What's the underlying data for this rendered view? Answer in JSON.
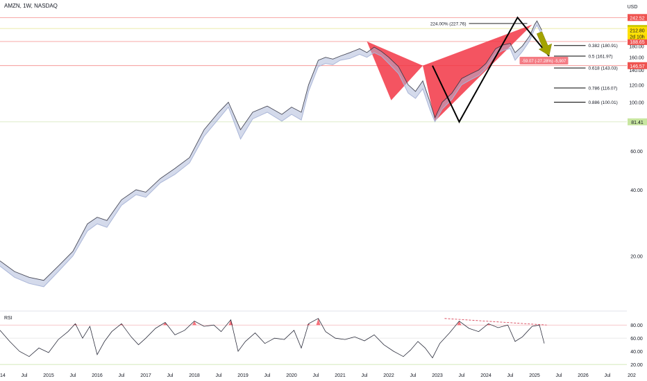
{
  "header": {
    "symbol_title": "AMZN, 1W, NASDAQ",
    "currency": "USD"
  },
  "colors": {
    "price_line": "#2b2d3c",
    "price_band": "#aab6d8",
    "red_pattern": "#f23645",
    "arrow": "#a3a300",
    "rsi_line": "#2b2d3c",
    "rsi_overbought_fill": "#f23645",
    "rsi_oversold_fill": "#26a69a",
    "level_red": "#ef5350",
    "level_yellow_badge": "#c8c800",
    "level_green": "#c5e1a5"
  },
  "chart_data": [
    {
      "type": "line",
      "panel": "price",
      "ylim": [
        12,
        252
      ],
      "y_scale": "log",
      "y_ticks": [
        20.0,
        40.0,
        60.0,
        100.0,
        120.0,
        140.0,
        160.0,
        180.0,
        200.0
      ],
      "x_tick_labels": [
        "2014",
        "Jul",
        "2015",
        "Jul",
        "2016",
        "Jul",
        "2017",
        "Jul",
        "2018",
        "Jul",
        "2019",
        "Jul",
        "2020",
        "Jul",
        "2021",
        "Jul",
        "2022",
        "Jul",
        "2023",
        "Jul",
        "2024",
        "Jul",
        "2025",
        "Jul",
        "2026",
        "Jul",
        "202"
      ],
      "x_range": [
        2014.0,
        2026.9
      ],
      "series": [
        {
          "x": [
            2014.0,
            2014.3,
            2014.6,
            2014.9,
            2015.2,
            2015.5,
            2015.8,
            2016.0,
            2016.2,
            2016.5,
            2016.8,
            2017.0,
            2017.3,
            2017.6,
            2017.9,
            2018.2,
            2018.5,
            2018.7,
            2018.95,
            2019.2,
            2019.5,
            2019.8,
            2020.0,
            2020.2,
            2020.35,
            2020.55,
            2020.7,
            2020.85,
            2021.0,
            2021.2,
            2021.4,
            2021.55,
            2021.7,
            2021.85,
            2022.0,
            2022.2,
            2022.4,
            2022.55,
            2022.7,
            2022.85,
            2022.95,
            2023.1,
            2023.3,
            2023.5,
            2023.7,
            2023.85,
            2024.0,
            2024.2,
            2024.35,
            2024.5,
            2024.6,
            2024.75,
            2024.9,
            2025.0,
            2025.05,
            2025.15
          ],
          "values": [
            19,
            17,
            16,
            15.5,
            18,
            21,
            28,
            30,
            29,
            36,
            40,
            39,
            45,
            50,
            56,
            75,
            90,
            100,
            75,
            90,
            96,
            88,
            95,
            90,
            120,
            155,
            160,
            157,
            162,
            168,
            175,
            168,
            178,
            170,
            160,
            145,
            120,
            112,
            125,
            100,
            85,
            100,
            110,
            128,
            135,
            140,
            150,
            175,
            182,
            185,
            168,
            180,
            200,
            225,
            234,
            212
          ],
          "lows": [
            18,
            16,
            15,
            14.5,
            17,
            20,
            26,
            28,
            27,
            34,
            38,
            37,
            43,
            47,
            53,
            70,
            84,
            95,
            68,
            84,
            90,
            82,
            88,
            83,
            112,
            145,
            150,
            148,
            155,
            158,
            165,
            160,
            168,
            162,
            150,
            135,
            110,
            104,
            115,
            92,
            81.5,
            93,
            103,
            120,
            127,
            132,
            142,
            165,
            172,
            175,
            155,
            170,
            190,
            215,
            224,
            202
          ]
        }
      ],
      "levels": [
        {
          "label": "242.52",
          "value": 242.52,
          "style": "red"
        },
        {
          "label": "216.20",
          "value": 216.2,
          "style": "yellow"
        },
        {
          "label": "212.80",
          "value": 212.8,
          "style": "yellow-small"
        },
        {
          "label": "188.65",
          "value": 188.65,
          "style": "red"
        },
        {
          "label": "146.57",
          "value": 146.57,
          "style": "red"
        },
        {
          "label": "81.41",
          "value": 81.41,
          "style": "green"
        }
      ],
      "countdown_label": "2d 10h",
      "fib_levels": [
        {
          "label": "0.382 (180.91)",
          "value": 180.91
        },
        {
          "label": "0.5 (161.97)",
          "value": 161.97
        },
        {
          "label": "0.618 (143.03)",
          "value": 143.03
        },
        {
          "label": "0.786 (116.07)",
          "value": 116.07
        },
        {
          "label": "0.886 (100.01)",
          "value": 100.01
        }
      ],
      "harmonic_pattern": {
        "triangle_1": [
          [
            2021.55,
            188.65
          ],
          [
            2022.05,
            102
          ],
          [
            2022.7,
            146.57
          ]
        ],
        "triangle_2": [
          [
            2022.7,
            146.57
          ],
          [
            2022.95,
            82
          ],
          [
            2024.95,
            225
          ]
        ]
      },
      "projection_line": [
        [
          2022.9,
          146.57
        ],
        [
          2023.45,
          81.41
        ],
        [
          2024.65,
          242.52
        ],
        [
          2025.3,
          161.97
        ]
      ],
      "extension_annotation": {
        "label": "224.00% (227.76)",
        "at": [
          2023.65,
          227.76
        ]
      },
      "measure_annotation": {
        "label": "-59.07 (-27.28%) -5,907",
        "at": [
          2024.75,
          154
        ]
      },
      "arrow": {
        "from": [
          2025.1,
          207
        ],
        "to": [
          2025.3,
          163
        ]
      }
    },
    {
      "type": "line",
      "panel": "rsi",
      "title": "RSI",
      "ylim": [
        18,
        95
      ],
      "y_ticks": [
        20.0,
        40.0,
        60.0,
        80.0
      ],
      "bands": [
        80,
        60,
        20
      ],
      "divergence_line": [
        [
          2023.15,
          90
        ],
        [
          2025.25,
          80
        ]
      ],
      "series": [
        {
          "x": [
            2014.0,
            2014.2,
            2014.4,
            2014.6,
            2014.8,
            2015.0,
            2015.2,
            2015.4,
            2015.55,
            2015.7,
            2015.85,
            2016.0,
            2016.15,
            2016.3,
            2016.5,
            2016.7,
            2016.85,
            2017.0,
            2017.2,
            2017.4,
            2017.6,
            2017.8,
            2018.0,
            2018.2,
            2018.4,
            2018.55,
            2018.75,
            2018.9,
            2019.05,
            2019.25,
            2019.45,
            2019.65,
            2019.85,
            2020.05,
            2020.2,
            2020.35,
            2020.55,
            2020.7,
            2020.9,
            2021.1,
            2021.3,
            2021.5,
            2021.7,
            2021.9,
            2022.1,
            2022.3,
            2022.45,
            2022.6,
            2022.75,
            2022.9,
            2023.05,
            2023.25,
            2023.45,
            2023.65,
            2023.85,
            2024.05,
            2024.25,
            2024.45,
            2024.6,
            2024.75,
            2024.95,
            2025.1,
            2025.2
          ],
          "values": [
            72,
            55,
            40,
            32,
            45,
            38,
            58,
            70,
            82,
            60,
            78,
            35,
            55,
            70,
            82,
            62,
            50,
            60,
            75,
            84,
            65,
            72,
            86,
            78,
            80,
            70,
            88,
            40,
            55,
            68,
            52,
            60,
            58,
            72,
            45,
            82,
            90,
            70,
            60,
            58,
            62,
            56,
            65,
            50,
            40,
            32,
            42,
            55,
            45,
            30,
            52,
            68,
            86,
            75,
            70,
            82,
            76,
            80,
            55,
            62,
            78,
            80,
            52
          ]
        }
      ]
    }
  ]
}
